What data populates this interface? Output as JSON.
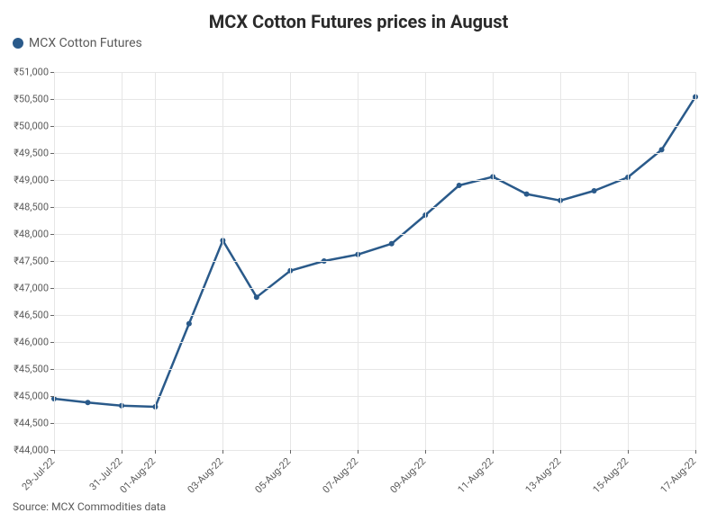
{
  "chart": {
    "type": "line",
    "title": "MCX Cotton Futures prices in August",
    "title_fontsize": 20,
    "title_color": "#2a2a2a",
    "legend": {
      "label": "MCX Cotton Futures",
      "color": "#2a5a8a",
      "fontsize": 14
    },
    "background_color": "#ffffff",
    "grid_color": "#e6e6e6",
    "axis_font_color": "#5a5a5a",
    "axis_fontsize": 11,
    "y_prefix": "₹",
    "ylim": [
      44000,
      51000
    ],
    "ytick_step": 500,
    "yticks": [
      44000,
      44500,
      45000,
      45500,
      46000,
      46500,
      47000,
      47500,
      48000,
      48500,
      49000,
      49500,
      50000,
      50500,
      51000
    ],
    "ytick_labels": [
      "₹44,000",
      "₹44,500",
      "₹45,000",
      "₹45,500",
      "₹46,000",
      "₹46,500",
      "₹47,000",
      "₹47,500",
      "₹48,000",
      "₹48,500",
      "₹49,000",
      "₹49,500",
      "₹50,000",
      "₹50,500",
      "₹51,000"
    ],
    "xtick_labels": [
      "29-Jul-22",
      "31-Jul-22",
      "01-Aug-22",
      "03-Aug-22",
      "05-Aug-22",
      "07-Aug-22",
      "09-Aug-22",
      "11-Aug-22",
      "13-Aug-22",
      "15-Aug-22",
      "17-Aug-22"
    ],
    "xtick_positions": [
      0,
      2,
      3,
      5,
      7,
      9,
      11,
      13,
      15,
      17,
      19
    ],
    "x_range": [
      0,
      19
    ],
    "series": {
      "name": "MCX Cotton Futures",
      "color": "#2a5a8a",
      "line_width": 2.5,
      "marker_radius": 3,
      "x": [
        0,
        1,
        2,
        3,
        4,
        5,
        6,
        7,
        8,
        9,
        10,
        11,
        12,
        13,
        14,
        15,
        16,
        17,
        18,
        19
      ],
      "y": [
        44950,
        44880,
        44820,
        44800,
        46340,
        47880,
        46830,
        47320,
        47500,
        47620,
        47820,
        48350,
        48900,
        49060,
        48740,
        48620,
        48800,
        49050,
        49560,
        50540
      ]
    },
    "source": "Source: MCX Commodities data",
    "source_fontsize": 12,
    "source_color": "#5a5a5a"
  }
}
